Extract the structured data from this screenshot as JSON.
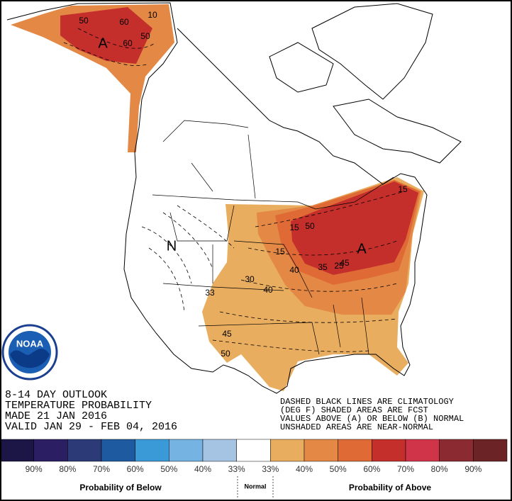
{
  "header": {
    "lines": [
      "8-14 DAY OUTLOOK",
      "TEMPERATURE PROBABILITY",
      "MADE  21 JAN 2016",
      "VALID  JAN 29 - FEB 04, 2016"
    ]
  },
  "note": {
    "lines": [
      "DASHED BLACK LINES ARE CLIMATOLOGY",
      "(DEG F) SHADED AREAS ARE FCST",
      "VALUES ABOVE (A) OR BELOW (B) NORMAL",
      "UNSHADED AREAS ARE NEAR-NORMAL"
    ]
  },
  "map_labels": [
    "60",
    "50",
    "60",
    "A",
    "10",
    "50",
    "A",
    "15",
    "15",
    "50",
    "35",
    "30",
    "40",
    "33",
    "45",
    "40",
    "45",
    "50",
    "N",
    "25",
    "15"
  ],
  "legend": {
    "colors": [
      "#1b1646",
      "#2b1e62",
      "#2c3b77",
      "#1d5aa0",
      "#3a9ad8",
      "#74b3e2",
      "#a5c4e3",
      "#ffffff",
      "#e9ad60",
      "#e48846",
      "#df6a35",
      "#c42f2b",
      "#cf3449",
      "#8b2a31",
      "#6b2326"
    ],
    "labels": [
      "90%",
      "80%",
      "70%",
      "60%",
      "50%",
      "40%",
      "33%",
      "33%",
      "40%",
      "50%",
      "60%",
      "70%",
      "80%",
      "90%"
    ],
    "below_title": "Probability of Below",
    "normal_title": "Normal",
    "above_title": "Probability of Above"
  },
  "logo": {
    "text": "NOAA"
  }
}
